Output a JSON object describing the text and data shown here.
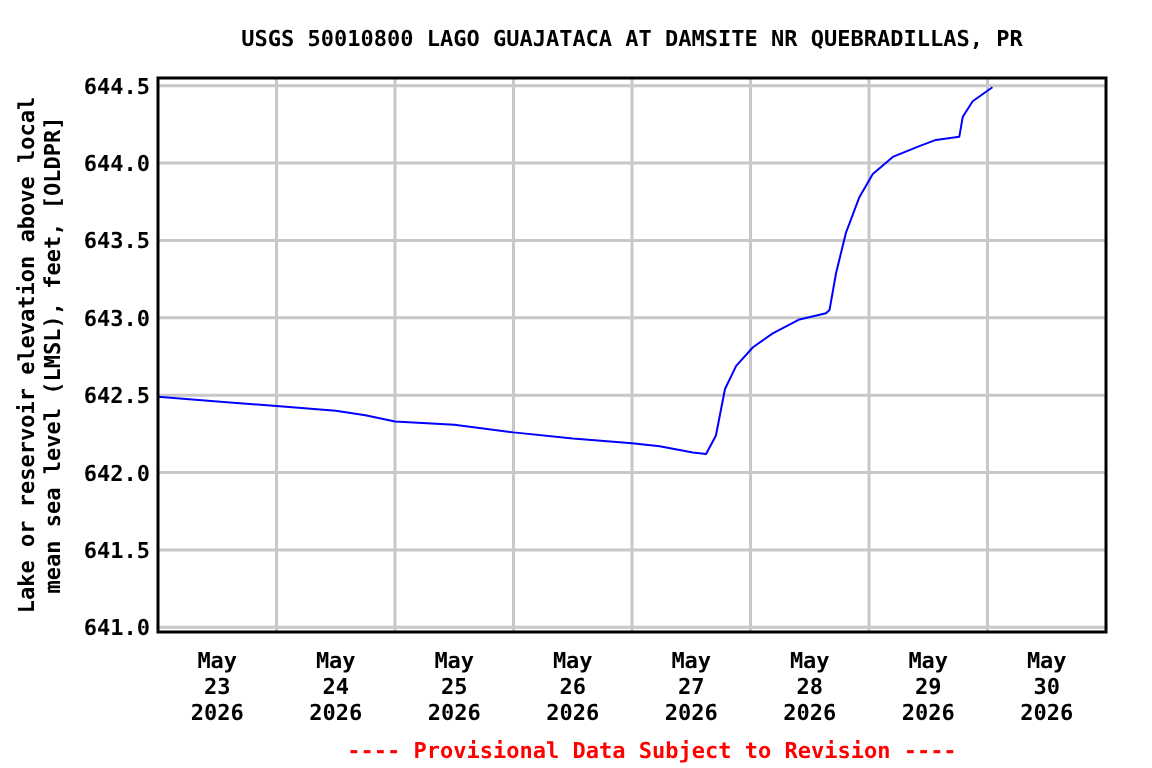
{
  "chart_data": {
    "type": "line",
    "title": "USGS 50010800 LAGO GUAJATACA AT DAMSITE NR QUEBRADILLAS, PR",
    "ylabel": "Lake or reservoir elevation above local mean sea level (LMSL), feet, [OLDPR]",
    "annotations": [
      "---- Provisional Data Subject to Revision ----"
    ],
    "x": [
      "2026-05-23T00:00",
      "2026-05-23T12:00",
      "2026-05-24T00:00",
      "2026-05-24T12:00",
      "2026-05-24T18:00",
      "2026-05-25T00:00",
      "2026-05-25T12:00",
      "2026-05-26T00:00",
      "2026-05-26T12:00",
      "2026-05-27T00:00",
      "2026-05-27T05:36",
      "2026-05-27T12:20",
      "2026-05-27T15:00",
      "2026-05-27T17:00",
      "2026-05-27T18:50",
      "2026-05-27T21:06",
      "2026-05-28T00:30",
      "2026-05-28T04:30",
      "2026-05-28T09:55",
      "2026-05-28T15:17",
      "2026-05-28T16:00",
      "2026-05-28T17:20",
      "2026-05-28T19:20",
      "2026-05-28T22:03",
      "2026-05-29T00:46",
      "2026-05-29T04:49",
      "2026-05-29T10:12",
      "2026-05-29T13:33",
      "2026-05-29T18:17",
      "2026-05-29T19:00",
      "2026-05-29T21:00",
      "2026-05-30T01:00"
    ],
    "series": [
      {
        "color": "#0000ff",
        "values": [
          642.49,
          642.46,
          642.43,
          642.4,
          642.37,
          642.33,
          642.31,
          642.26,
          642.22,
          642.19,
          642.17,
          642.13,
          642.12,
          642.24,
          642.54,
          642.69,
          642.81,
          642.9,
          642.99,
          643.03,
          643.05,
          643.29,
          643.55,
          643.78,
          643.93,
          644.04,
          644.11,
          644.15,
          644.17,
          644.3,
          644.4,
          644.49
        ]
      }
    ],
    "xlim": [
      "2026-05-23",
      "2026-05-31"
    ],
    "xticks": [
      {
        "value": "2026-05-23T12:00",
        "label": "May 23 2026"
      },
      {
        "value": "2026-05-24T00:00",
        "label": null
      },
      {
        "value": "2026-05-24T12:00",
        "label": "May 24 2026"
      },
      {
        "value": "2026-05-25T00:00",
        "label": null
      },
      {
        "value": "2026-05-25T12:00",
        "label": "May 25 2026"
      },
      {
        "value": "2026-05-26T00:00",
        "label": null
      },
      {
        "value": "2026-05-26T12:00",
        "label": "May 26 2026"
      },
      {
        "value": "2026-05-27T00:00",
        "label": null
      },
      {
        "value": "2026-05-27T12:00",
        "label": "May 27 2026"
      },
      {
        "value": "2026-05-28T00:00",
        "label": null
      },
      {
        "value": "2026-05-28T12:00",
        "label": "May 28 2026"
      },
      {
        "value": "2026-05-29T00:00",
        "label": null
      },
      {
        "value": "2026-05-29T12:00",
        "label": "May 29 2026"
      },
      {
        "value": "2026-05-30T00:00",
        "label": null
      },
      {
        "value": "2026-05-30T12:00",
        "label": "May 30 2026"
      }
    ],
    "ylim": [
      640.97,
      644.55
    ],
    "yticks": [
      {
        "value": 641,
        "label": "641.0"
      },
      {
        "value": 641.5,
        "label": "641.5"
      },
      {
        "value": 642,
        "label": "642.0"
      },
      {
        "value": 642.5,
        "label": "642.5"
      },
      {
        "value": 643,
        "label": "643.0"
      },
      {
        "value": 643.5,
        "label": "643.5"
      },
      {
        "value": 644,
        "label": "644.0"
      },
      {
        "value": 644.5,
        "label": "644.5"
      }
    ],
    "grid": true,
    "marker": "none",
    "line_style": "solid"
  }
}
